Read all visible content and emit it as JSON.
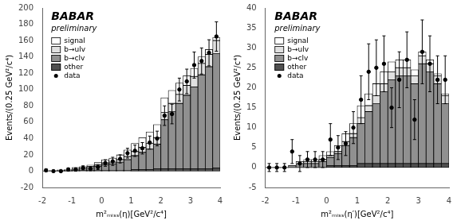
{
  "chart_data": [
    {
      "type": "bar",
      "stacked": true,
      "xlabel": "m²ₘᵢₛₛ(η)[GeV²/c⁴]",
      "ylabel": "Events/(0.25 GeV²/c⁴)",
      "annotations": [
        "BABAR",
        "preliminary"
      ],
      "legend": "upper left",
      "grid": false,
      "xlim": [
        -2,
        4
      ],
      "ylim": [
        -20,
        200
      ],
      "xticks": [
        -2,
        -1,
        0,
        1,
        2,
        3,
        4
      ],
      "yticks": [
        -20,
        0,
        20,
        40,
        60,
        80,
        100,
        120,
        140,
        160,
        180,
        200
      ],
      "bins": [
        -2.0,
        -1.75,
        -1.5,
        -1.25,
        -1.0,
        -0.75,
        -0.5,
        -0.25,
        0.0,
        0.25,
        0.5,
        0.75,
        1.0,
        1.25,
        1.5,
        1.75,
        2.0,
        2.25,
        2.5,
        2.75,
        3.0,
        3.25,
        3.5,
        3.75,
        4.0
      ],
      "series": [
        {
          "name": "signal",
          "color": "#ffffff",
          "values": [
            0.5,
            0.5,
            0.5,
            0.5,
            1,
            1,
            2,
            3,
            4,
            5,
            6,
            8,
            10,
            12,
            14,
            16,
            18,
            16,
            14,
            12,
            10,
            8,
            6,
            4
          ]
        },
        {
          "name": "b→ulv",
          "color": "#e0e0e0",
          "values": [
            0,
            0,
            0,
            0.5,
            1,
            1,
            1,
            1.5,
            2,
            2,
            3,
            4,
            5,
            6,
            7,
            8,
            9,
            10,
            11,
            12,
            13,
            14,
            15,
            16
          ]
        },
        {
          "name": "b→clv",
          "color": "#909090",
          "values": [
            0,
            0.5,
            1,
            1,
            2,
            3,
            4,
            5,
            7,
            8,
            10,
            13,
            17,
            21,
            25,
            30,
            60,
            70,
            80,
            90,
            100,
            115,
            125,
            140
          ]
        },
        {
          "name": "other",
          "color": "#505050",
          "values": [
            0,
            0,
            0,
            0,
            0.5,
            0.5,
            0.5,
            1,
            1,
            1,
            1,
            1,
            2,
            2,
            2,
            3,
            3,
            3,
            3,
            3,
            3,
            3,
            3,
            4
          ]
        },
        {
          "name": "data",
          "type": "scatter",
          "marker": "circle",
          "color": "#000000",
          "x": [
            -1.875,
            -1.625,
            -1.375,
            -1.125,
            -0.875,
            -0.625,
            -0.375,
            -0.125,
            0.125,
            0.375,
            0.625,
            0.875,
            1.125,
            1.375,
            1.625,
            1.875,
            2.125,
            2.375,
            2.625,
            2.875,
            3.125,
            3.375,
            3.625,
            3.875
          ],
          "values": [
            1,
            0,
            0,
            2,
            2,
            4,
            3,
            5,
            10,
            12,
            15,
            22,
            25,
            28,
            35,
            40,
            68,
            70,
            100,
            110,
            130,
            135,
            145,
            165
          ],
          "errors": [
            1.5,
            1,
            1,
            2,
            2,
            2.5,
            2.5,
            3,
            4,
            5,
            5,
            6,
            7,
            7,
            8,
            9,
            12,
            12,
            14,
            15,
            16,
            16,
            16,
            18
          ]
        }
      ]
    },
    {
      "type": "bar",
      "stacked": true,
      "xlabel": "m²ₘᵢₛₛ(η′)[GeV²/c⁴]",
      "ylabel": "Events/(0.25 GeV²/c⁴)",
      "annotations": [
        "BABAR",
        "preliminary"
      ],
      "legend": "upper left",
      "grid": false,
      "xlim": [
        -2,
        4
      ],
      "ylim": [
        -5,
        40
      ],
      "xticks": [
        -2,
        -1,
        0,
        1,
        2,
        3,
        4
      ],
      "yticks": [
        -5,
        0,
        5,
        10,
        15,
        20,
        25,
        30,
        35,
        40
      ],
      "bins": [
        -2.0,
        -1.75,
        -1.5,
        -1.25,
        -1.0,
        -0.75,
        -0.5,
        -0.25,
        0.0,
        0.25,
        0.5,
        0.75,
        1.0,
        1.25,
        1.5,
        1.75,
        2.0,
        2.25,
        2.5,
        2.75,
        3.0,
        3.25,
        3.5,
        3.75,
        4.0
      ],
      "series": [
        {
          "name": "signal",
          "color": "#ffffff",
          "values": [
            0,
            0,
            0,
            0,
            0.5,
            0.5,
            0.5,
            1,
            1,
            1.5,
            2,
            2.5,
            3,
            3,
            3,
            3,
            2.5,
            2,
            2,
            1.5,
            1,
            1,
            0.5,
            0.5
          ]
        },
        {
          "name": "b→ulv",
          "color": "#e0e0e0",
          "values": [
            0,
            0,
            0,
            0,
            0,
            0.5,
            0.5,
            0.5,
            0.5,
            0.5,
            1,
            1,
            1.5,
            1.5,
            2,
            2,
            2,
            2,
            2,
            2,
            2,
            2,
            2,
            2
          ]
        },
        {
          "name": "b→clv",
          "color": "#909090",
          "values": [
            0,
            0,
            0,
            0.5,
            1,
            1,
            1,
            1.5,
            2,
            3,
            5,
            7,
            10,
            13,
            15,
            18,
            21,
            22,
            22,
            20,
            25,
            23,
            20,
            15
          ]
        },
        {
          "name": "other",
          "color": "#505050",
          "values": [
            0,
            0,
            0,
            0,
            0,
            0,
            0,
            0,
            0.5,
            0.5,
            0.5,
            0.5,
            1,
            1,
            1,
            1,
            1,
            1,
            1,
            1,
            1,
            1,
            1,
            1
          ]
        },
        {
          "name": "data",
          "type": "scatter",
          "marker": "circle",
          "color": "#000000",
          "x": [
            -1.875,
            -1.625,
            -1.375,
            -1.125,
            -0.875,
            -0.625,
            -0.375,
            -0.125,
            0.125,
            0.375,
            0.625,
            0.875,
            1.125,
            1.375,
            1.625,
            1.875,
            2.125,
            2.375,
            2.625,
            2.875,
            3.125,
            3.375,
            3.625,
            3.875
          ],
          "values": [
            0,
            0,
            0,
            4,
            1,
            2,
            2,
            2,
            7,
            5,
            6,
            10,
            17,
            24,
            25,
            26,
            15,
            22,
            27,
            12,
            29,
            26,
            22,
            22
          ],
          "errors": [
            1,
            1,
            1,
            3,
            2,
            2,
            2,
            2,
            4,
            3,
            3,
            4,
            6,
            7,
            7,
            7,
            5,
            7,
            7,
            5,
            8,
            7,
            6,
            6
          ]
        }
      ]
    }
  ]
}
